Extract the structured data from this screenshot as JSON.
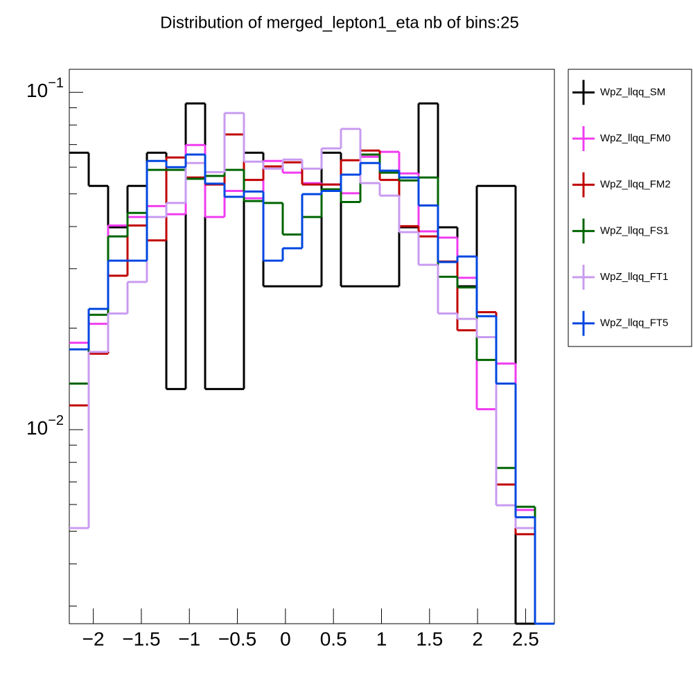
{
  "chart_data": {
    "type": "histogram",
    "title": "Distribution of merged_lepton1_eta nb of bins:25",
    "bins": [
      -2.25,
      -2.048,
      -1.846,
      -1.644,
      -1.442,
      -1.24,
      -1.038,
      -0.836,
      -0.634,
      -0.432,
      -0.23,
      -0.028,
      0.174,
      0.376,
      0.578,
      0.78,
      0.982,
      1.184,
      1.386,
      1.588,
      1.79,
      1.992,
      2.194,
      2.396,
      2.598,
      2.8
    ],
    "series": [
      {
        "name": "WpZ_llqq_SM",
        "color": "#000000",
        "values": [
          0.0662,
          0.0528,
          0.0398,
          0.0528,
          0.0662,
          0.0132,
          0.0927,
          0.0132,
          0.0132,
          0.0662,
          0.0266,
          0.0266,
          0.0266,
          0.0662,
          0.0266,
          0.0266,
          0.0266,
          0.0398,
          0.0927,
          0.0398,
          0.0266,
          0.0528,
          0.0528,
          0,
          0
        ]
      },
      {
        "name": "WpZ_llqq_FM0",
        "color": "#f03cf0",
        "values": [
          0.0181,
          0.0206,
          0.0403,
          0.0427,
          0.046,
          0.0435,
          0.0698,
          0.0427,
          0.051,
          0.0485,
          0.0626,
          0.0578,
          0.0538,
          0.0533,
          0.0502,
          0.0644,
          0.0666,
          0.0575,
          0.0387,
          0.0371,
          0.0282,
          0.0115,
          0.0157,
          0.00578,
          0
        ]
      },
      {
        "name": "WpZ_llqq_FM2",
        "color": "#c00000",
        "values": [
          0.0118,
          0.0168,
          0.0286,
          0.0403,
          0.0364,
          0.0641,
          0.0559,
          0.0533,
          0.075,
          0.055,
          0.0603,
          0.062,
          0.0533,
          0.0533,
          0.0629,
          0.0672,
          0.055,
          0.0401,
          0.0374,
          0.0315,
          0.0197,
          0.0223,
          0.00688,
          0.0049,
          0
        ]
      },
      {
        "name": "WpZ_llqq_FS1",
        "color": "#006400",
        "values": [
          0.0137,
          0.0219,
          0.0374,
          0.0439,
          0.0589,
          0.0589,
          0.0554,
          0.0565,
          0.0589,
          0.0476,
          0.047,
          0.0379,
          0.0427,
          0.0516,
          0.0473,
          0.0654,
          0.0578,
          0.0548,
          0.0559,
          0.0284,
          0.0264,
          0.0161,
          0.0077,
          0.00591,
          0
        ]
      },
      {
        "name": "WpZ_llqq_FT1",
        "color": "#c89bf0",
        "values": [
          0.00511,
          0.017,
          0.0221,
          0.0274,
          0.0427,
          0.047,
          0.0617,
          0.058,
          0.0868,
          0.0623,
          0.0594,
          0.0632,
          0.0594,
          0.0682,
          0.0779,
          0.0538,
          0.0494,
          0.0385,
          0.0308,
          0.0221,
          0.0213,
          0.0188,
          0.00597,
          0.00511,
          0
        ]
      },
      {
        "name": "WpZ_llqq_FT5",
        "color": "#0046e0",
        "values": [
          0.0173,
          0.0228,
          0.0317,
          0.0317,
          0.0626,
          0.06,
          0.0654,
          0.0536,
          0.049,
          0.0508,
          0.0317,
          0.0345,
          0.0499,
          0.051,
          0.057,
          0.0617,
          0.0586,
          0.0559,
          0.0462,
          0.0314,
          0.0326,
          0.0217,
          0.0137,
          0.0055,
          0
        ]
      }
    ],
    "xlim": [
      -2.25,
      2.8
    ],
    "xticks": [
      {
        "value": -2,
        "label": "−2"
      },
      {
        "value": -1.5,
        "label": "−1.5"
      },
      {
        "value": -1,
        "label": "−1"
      },
      {
        "value": -0.5,
        "label": "−0.5"
      },
      0,
      0.5,
      1,
      1.5,
      2,
      2.5
    ],
    "ylim": [
      0.00266,
      0.117
    ],
    "log_y": true,
    "yticks": [
      {
        "value": 0.01,
        "label": "10",
        "exponent": "−2"
      },
      {
        "value": 0.1,
        "label": "10",
        "exponent": "−1"
      }
    ],
    "yminorticks": [
      0.003,
      0.004,
      0.005,
      0.006,
      0.007,
      0.008,
      0.009,
      0.02,
      0.03,
      0.04,
      0.05,
      0.06,
      0.07,
      0.08,
      0.09
    ],
    "grid": false,
    "legend": "outside-right"
  }
}
